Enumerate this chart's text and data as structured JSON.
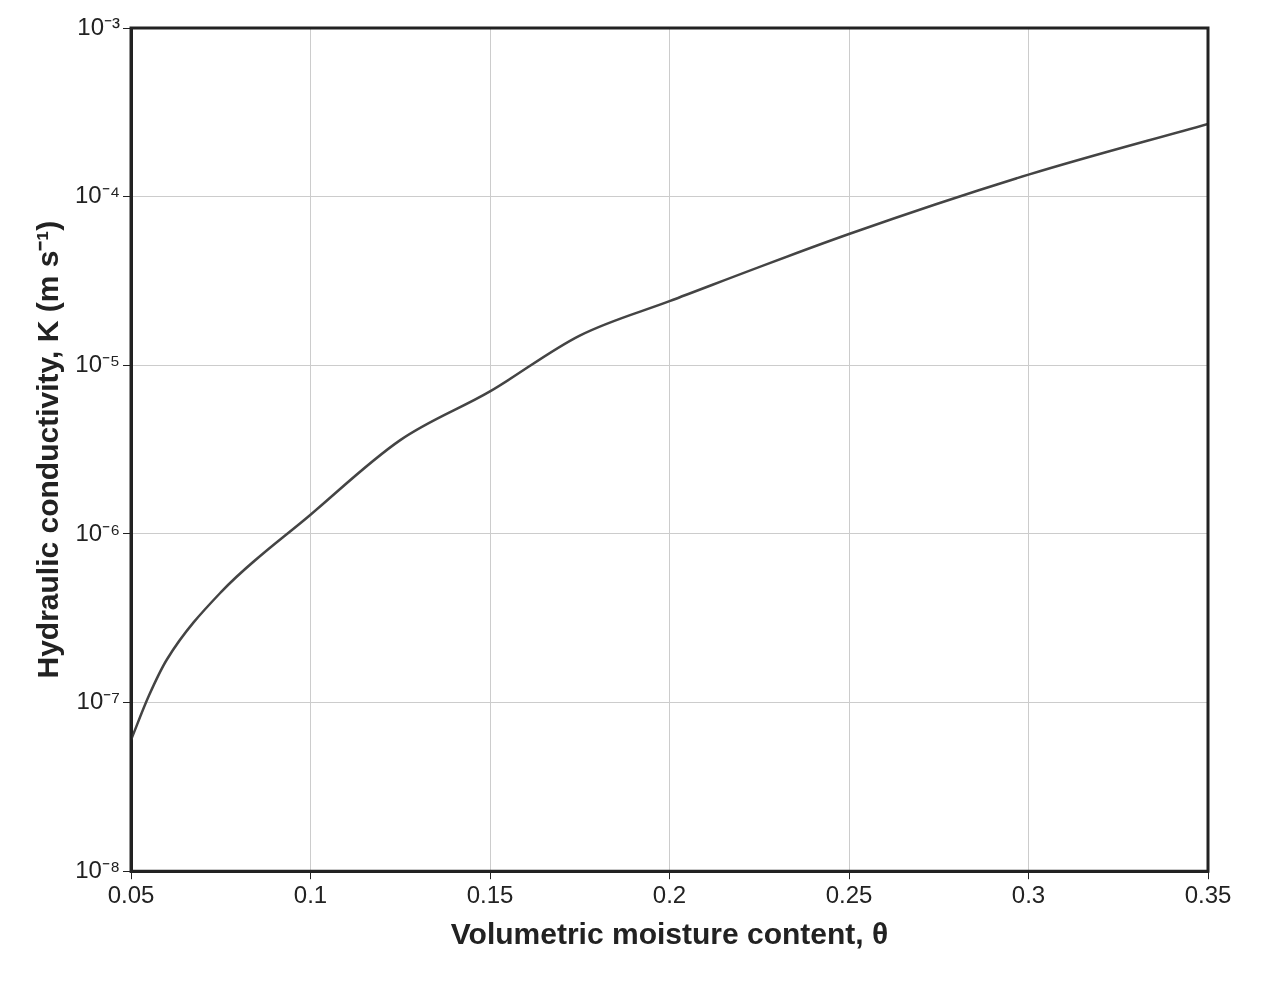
{
  "chart_data": {
    "type": "line",
    "xlabel": "Volumetric moisture content, θ",
    "ylabel": "Hydraulic conductivity, K (m s⁻¹)",
    "x": [
      0.05,
      0.055,
      0.06,
      0.075,
      0.1,
      0.125,
      0.15,
      0.175,
      0.2,
      0.25,
      0.3,
      0.35
    ],
    "series": [
      {
        "color": "#444444",
        "values": [
          6e-08,
          1.1e-07,
          1.8e-07,
          4.5e-07,
          1.3e-06,
          3.6e-06,
          7e-06,
          1.5e-05,
          2.4e-05,
          6e-05,
          0.000135,
          0.00027
        ]
      }
    ],
    "xlim": [
      0.05,
      0.35
    ],
    "xticks": [
      0.05,
      0.1,
      0.15,
      0.2,
      0.25,
      0.3,
      0.35
    ],
    "ylim": [
      1e-08,
      0.001
    ],
    "yticks": [
      {
        "value": 1e-08,
        "label": "10⁻⁸"
      },
      {
        "value": 1e-07,
        "label": "10⁻⁷"
      },
      {
        "value": 1e-06,
        "label": "10⁻⁶"
      },
      {
        "value": 1e-05,
        "label": "10⁻⁵"
      },
      {
        "value": 0.0001,
        "label": "10⁻⁴"
      },
      {
        "value": 0.001,
        "label": "10⁻³"
      }
    ],
    "log": true,
    "grid": true,
    "marker": "none",
    "line_style": "solid"
  }
}
